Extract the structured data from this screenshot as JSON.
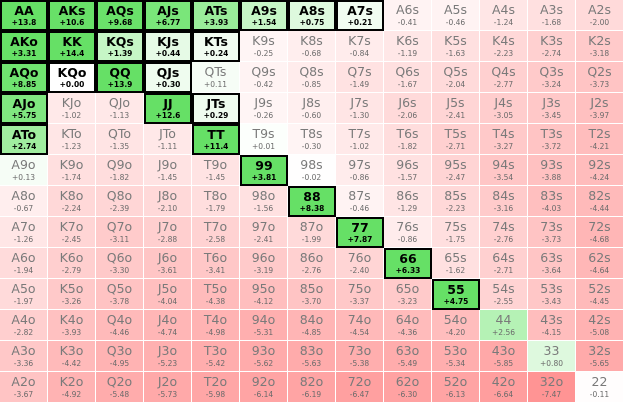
{
  "grid": {
    "rows": [
      [
        {
          "hand": "AA",
          "ev": "+13.8",
          "color": "#66e066",
          "bold": true,
          "box": true
        },
        {
          "hand": "AKs",
          "ev": "+10.6",
          "color": "#68e068",
          "bold": true,
          "box": true
        },
        {
          "hand": "AQs",
          "ev": "+9.68",
          "color": "#6ae16a",
          "bold": true,
          "box": true
        },
        {
          "hand": "AJs",
          "ev": "+6.77",
          "color": "#7ae67a",
          "bold": true,
          "box": true
        },
        {
          "hand": "ATs",
          "ev": "+3.93",
          "color": "#9aed9a",
          "bold": true,
          "box": true
        },
        {
          "hand": "A9s",
          "ev": "+1.54",
          "color": "#c6f6c6",
          "bold": true,
          "box": true
        },
        {
          "hand": "A8s",
          "ev": "+0.75",
          "color": "#def9de",
          "bold": true,
          "box": true
        },
        {
          "hand": "A7s",
          "ev": "+0.21",
          "color": "#f1fcf1",
          "bold": true,
          "box": true
        },
        {
          "hand": "A6s",
          "ev": "-0.41",
          "color": "#fff3f3"
        },
        {
          "hand": "A5s",
          "ev": "-0.46",
          "color": "#fff3f3"
        },
        {
          "hand": "A4s",
          "ev": "-1.24",
          "color": "#ffe6e6"
        },
        {
          "hand": "A3s",
          "ev": "-1.68",
          "color": "#ffe0e0"
        },
        {
          "hand": "A2s",
          "ev": "-2.00",
          "color": "#ffdada"
        }
      ],
      [
        {
          "hand": "AKo",
          "ev": "+3.31",
          "color": "#66e066",
          "bold": true,
          "box": true
        },
        {
          "hand": "KK",
          "ev": "+14.4",
          "color": "#66e066",
          "bold": true,
          "box": true
        },
        {
          "hand": "KQs",
          "ev": "+1.39",
          "color": "#c6f6c6",
          "bold": true,
          "box": true
        },
        {
          "hand": "KJs",
          "ev": "+0.44",
          "color": "#e6fae6",
          "bold": true,
          "box": true
        },
        {
          "hand": "KTs",
          "ev": "+0.24",
          "color": "#f1fcf1",
          "bold": true,
          "box": true
        },
        {
          "hand": "K9s",
          "ev": "-0.25",
          "color": "#fff5f5"
        },
        {
          "hand": "K8s",
          "ev": "-0.68",
          "color": "#ffeeee"
        },
        {
          "hand": "K7s",
          "ev": "-0.84",
          "color": "#ffecec"
        },
        {
          "hand": "K6s",
          "ev": "-1.19",
          "color": "#ffe7e7"
        },
        {
          "hand": "K5s",
          "ev": "-1.63",
          "color": "#ffe0e0"
        },
        {
          "hand": "K4s",
          "ev": "-2.23",
          "color": "#ffd8d8"
        },
        {
          "hand": "K3s",
          "ev": "-2.74",
          "color": "#ffd0d0"
        },
        {
          "hand": "K2s",
          "ev": "-3.18",
          "color": "#ffcaca"
        }
      ],
      [
        {
          "hand": "AQo",
          "ev": "+8.85",
          "color": "#70e370",
          "bold": true,
          "box": true
        },
        {
          "hand": "KQo",
          "ev": "+0.00",
          "color": "#ffffff",
          "bold": true,
          "box": true
        },
        {
          "hand": "QQ",
          "ev": "+13.9",
          "color": "#66e066",
          "bold": true,
          "box": true
        },
        {
          "hand": "QJs",
          "ev": "+0.30",
          "color": "#effcef",
          "bold": true,
          "box": true
        },
        {
          "hand": "QTs",
          "ev": "+0.11",
          "color": "#f6fdf6"
        },
        {
          "hand": "Q9s",
          "ev": "-0.42",
          "color": "#fff3f3"
        },
        {
          "hand": "Q8s",
          "ev": "-0.85",
          "color": "#ffecec"
        },
        {
          "hand": "Q7s",
          "ev": "-1.49",
          "color": "#ffe2e2"
        },
        {
          "hand": "Q6s",
          "ev": "-1.67",
          "color": "#ffe0e0"
        },
        {
          "hand": "Q5s",
          "ev": "-2.04",
          "color": "#ffdada"
        },
        {
          "hand": "Q4s",
          "ev": "-2.77",
          "color": "#ffd0d0"
        },
        {
          "hand": "Q3s",
          "ev": "-3.24",
          "color": "#ffcaca"
        },
        {
          "hand": "Q2s",
          "ev": "-3.73",
          "color": "#ffc4c4"
        }
      ],
      [
        {
          "hand": "AJo",
          "ev": "+5.75",
          "color": "#80e780",
          "bold": true,
          "box": true
        },
        {
          "hand": "KJo",
          "ev": "-1.02",
          "color": "#ffe9e9"
        },
        {
          "hand": "QJo",
          "ev": "-1.13",
          "color": "#ffe8e8"
        },
        {
          "hand": "JJ",
          "ev": "+12.6",
          "color": "#66e066",
          "bold": true,
          "box": true
        },
        {
          "hand": "JTs",
          "ev": "+0.29",
          "color": "#effcef",
          "bold": true,
          "box": true
        },
        {
          "hand": "J9s",
          "ev": "-0.26",
          "color": "#fff5f5"
        },
        {
          "hand": "J8s",
          "ev": "-0.60",
          "color": "#ffefef"
        },
        {
          "hand": "J7s",
          "ev": "-1.30",
          "color": "#ffe5e5"
        },
        {
          "hand": "J6s",
          "ev": "-2.06",
          "color": "#ffdada"
        },
        {
          "hand": "J5s",
          "ev": "-2.41",
          "color": "#ffd5d5"
        },
        {
          "hand": "J4s",
          "ev": "-3.05",
          "color": "#ffcdcd"
        },
        {
          "hand": "J3s",
          "ev": "-3.45",
          "color": "#ffc8c8"
        },
        {
          "hand": "J2s",
          "ev": "-3.97",
          "color": "#ffc0c0"
        }
      ],
      [
        {
          "hand": "ATo",
          "ev": "+2.74",
          "color": "#a0ee9f",
          "bold": true,
          "box": true
        },
        {
          "hand": "KTo",
          "ev": "-1.23",
          "color": "#ffe6e6"
        },
        {
          "hand": "QTo",
          "ev": "-1.35",
          "color": "#ffe4e4"
        },
        {
          "hand": "JTo",
          "ev": "-1.11",
          "color": "#ffe8e8"
        },
        {
          "hand": "TT",
          "ev": "+11.4",
          "color": "#66e066",
          "bold": true,
          "box": true
        },
        {
          "hand": "T9s",
          "ev": "+0.01",
          "color": "#fcfffc"
        },
        {
          "hand": "T8s",
          "ev": "-0.30",
          "color": "#fff4f4"
        },
        {
          "hand": "T7s",
          "ev": "-1.02",
          "color": "#ffe9e9"
        },
        {
          "hand": "T6s",
          "ev": "-1.82",
          "color": "#ffdddd"
        },
        {
          "hand": "T5s",
          "ev": "-2.71",
          "color": "#ffd0d0"
        },
        {
          "hand": "T4s",
          "ev": "-3.27",
          "color": "#ffc9c9"
        },
        {
          "hand": "T3s",
          "ev": "-3.72",
          "color": "#ffc4c4"
        },
        {
          "hand": "T2s",
          "ev": "-4.21",
          "color": "#ffbdbd"
        }
      ],
      [
        {
          "hand": "A9o",
          "ev": "+0.13",
          "color": "#f6fdf6"
        },
        {
          "hand": "K9o",
          "ev": "-1.74",
          "color": "#ffdfdf"
        },
        {
          "hand": "Q9o",
          "ev": "-1.82",
          "color": "#ffdddd"
        },
        {
          "hand": "J9o",
          "ev": "-1.45",
          "color": "#ffe3e3"
        },
        {
          "hand": "T9o",
          "ev": "-1.45",
          "color": "#ffe3e3"
        },
        {
          "hand": "99",
          "ev": "+3.81",
          "color": "#66e066",
          "bold": true,
          "box": true
        },
        {
          "hand": "98s",
          "ev": "-0.02",
          "color": "#fffefe"
        },
        {
          "hand": "97s",
          "ev": "-0.86",
          "color": "#ffecec"
        },
        {
          "hand": "96s",
          "ev": "-1.57",
          "color": "#ffe1e1"
        },
        {
          "hand": "95s",
          "ev": "-2.47",
          "color": "#ffd4d4"
        },
        {
          "hand": "94s",
          "ev": "-3.54",
          "color": "#ffc6c6"
        },
        {
          "hand": "93s",
          "ev": "-3.88",
          "color": "#ffc1c1"
        },
        {
          "hand": "92s",
          "ev": "-4.24",
          "color": "#ffbcbc"
        }
      ],
      [
        {
          "hand": "A8o",
          "ev": "-0.67",
          "color": "#ffeeee"
        },
        {
          "hand": "K8o",
          "ev": "-2.24",
          "color": "#ffd8d8"
        },
        {
          "hand": "Q8o",
          "ev": "-2.39",
          "color": "#ffd6d6"
        },
        {
          "hand": "J8o",
          "ev": "-2.10",
          "color": "#ffd9d9"
        },
        {
          "hand": "T8o",
          "ev": "-1.79",
          "color": "#ffdede"
        },
        {
          "hand": "98o",
          "ev": "-1.56",
          "color": "#ffe1e1"
        },
        {
          "hand": "88",
          "ev": "+8.38",
          "color": "#66e066",
          "bold": true,
          "box": true
        },
        {
          "hand": "87s",
          "ev": "-0.46",
          "color": "#fff3f3"
        },
        {
          "hand": "86s",
          "ev": "-1.29",
          "color": "#ffe5e5"
        },
        {
          "hand": "85s",
          "ev": "-2.23",
          "color": "#ffd8d8"
        },
        {
          "hand": "84s",
          "ev": "-3.16",
          "color": "#ffcbcb"
        },
        {
          "hand": "83s",
          "ev": "-4.03",
          "color": "#ffbfbf"
        },
        {
          "hand": "82s",
          "ev": "-4.44",
          "color": "#ffbaba"
        }
      ],
      [
        {
          "hand": "A7o",
          "ev": "-1.26",
          "color": "#ffe6e6"
        },
        {
          "hand": "K7o",
          "ev": "-2.45",
          "color": "#ffd5d5"
        },
        {
          "hand": "Q7o",
          "ev": "-3.11",
          "color": "#ffcbcb"
        },
        {
          "hand": "J7o",
          "ev": "-2.88",
          "color": "#ffcfcf"
        },
        {
          "hand": "T7o",
          "ev": "-2.58",
          "color": "#ffd2d2"
        },
        {
          "hand": "97o",
          "ev": "-2.41",
          "color": "#ffd5d5"
        },
        {
          "hand": "87o",
          "ev": "-1.99",
          "color": "#ffdada"
        },
        {
          "hand": "77",
          "ev": "+7.87",
          "color": "#66e066",
          "bold": true,
          "box": true
        },
        {
          "hand": "76s",
          "ev": "-0.86",
          "color": "#ffecec"
        },
        {
          "hand": "75s",
          "ev": "-1.75",
          "color": "#ffdfdf"
        },
        {
          "hand": "74s",
          "ev": "-2.76",
          "color": "#ffd0d0"
        },
        {
          "hand": "73s",
          "ev": "-3.73",
          "color": "#ffc4c4"
        },
        {
          "hand": "72s",
          "ev": "-4.68",
          "color": "#ffb6b6"
        }
      ],
      [
        {
          "hand": "A6o",
          "ev": "-1.94",
          "color": "#ffdbdb"
        },
        {
          "hand": "K6o",
          "ev": "-2.79",
          "color": "#ffcfcf"
        },
        {
          "hand": "Q6o",
          "ev": "-3.30",
          "color": "#ffc9c9"
        },
        {
          "hand": "J6o",
          "ev": "-3.61",
          "color": "#ffc5c5"
        },
        {
          "hand": "T6o",
          "ev": "-3.41",
          "color": "#ffc7c7"
        },
        {
          "hand": "96o",
          "ev": "-3.19",
          "color": "#ffcaca"
        },
        {
          "hand": "86o",
          "ev": "-2.76",
          "color": "#ffd0d0"
        },
        {
          "hand": "76o",
          "ev": "-2.40",
          "color": "#ffd5d5"
        },
        {
          "hand": "66",
          "ev": "+6.33",
          "color": "#66e066",
          "bold": true,
          "box": true
        },
        {
          "hand": "65s",
          "ev": "-1.62",
          "color": "#ffe0e0"
        },
        {
          "hand": "64s",
          "ev": "-2.71",
          "color": "#ffd0d0"
        },
        {
          "hand": "63s",
          "ev": "-3.64",
          "color": "#ffc5c5"
        },
        {
          "hand": "62s",
          "ev": "-4.64",
          "color": "#ffb7b7"
        }
      ],
      [
        {
          "hand": "A5o",
          "ev": "-1.97",
          "color": "#ffdada"
        },
        {
          "hand": "K5o",
          "ev": "-3.26",
          "color": "#ffc9c9"
        },
        {
          "hand": "Q5o",
          "ev": "-3.78",
          "color": "#ffc3c3"
        },
        {
          "hand": "J5o",
          "ev": "-4.04",
          "color": "#ffbfbf"
        },
        {
          "hand": "T5o",
          "ev": "-4.38",
          "color": "#ffbbbb"
        },
        {
          "hand": "95o",
          "ev": "-4.12",
          "color": "#ffbebe"
        },
        {
          "hand": "85o",
          "ev": "-3.70",
          "color": "#ffc4c4"
        },
        {
          "hand": "75o",
          "ev": "-3.37",
          "color": "#ffc8c8"
        },
        {
          "hand": "65o",
          "ev": "-3.23",
          "color": "#ffcaca"
        },
        {
          "hand": "55",
          "ev": "+4.75",
          "color": "#66e066",
          "bold": true,
          "box": true
        },
        {
          "hand": "54s",
          "ev": "-2.55",
          "color": "#ffd3d3"
        },
        {
          "hand": "53s",
          "ev": "-3.43",
          "color": "#ffc7c7"
        },
        {
          "hand": "52s",
          "ev": "-4.45",
          "color": "#ffbaba"
        }
      ],
      [
        {
          "hand": "A4o",
          "ev": "-2.82",
          "color": "#ffcfcf"
        },
        {
          "hand": "K4o",
          "ev": "-3.93",
          "color": "#ffc1c1"
        },
        {
          "hand": "Q4o",
          "ev": "-4.46",
          "color": "#ffbaba"
        },
        {
          "hand": "J4o",
          "ev": "-4.74",
          "color": "#ffb6b6"
        },
        {
          "hand": "T4o",
          "ev": "-4.98",
          "color": "#ffb3b3"
        },
        {
          "hand": "94o",
          "ev": "-5.31",
          "color": "#ffafaf"
        },
        {
          "hand": "84o",
          "ev": "-4.85",
          "color": "#ffb5b5"
        },
        {
          "hand": "74o",
          "ev": "-4.54",
          "color": "#ffb9b9"
        },
        {
          "hand": "64o",
          "ev": "-4.36",
          "color": "#ffbbbb"
        },
        {
          "hand": "54o",
          "ev": "-4.20",
          "color": "#ffbdbd"
        },
        {
          "hand": "44",
          "ev": "+2.56",
          "color": "#b5f2b5"
        },
        {
          "hand": "43s",
          "ev": "-4.15",
          "color": "#ffbdbd"
        },
        {
          "hand": "42s",
          "ev": "-5.08",
          "color": "#ffb2b2"
        }
      ],
      [
        {
          "hand": "A3o",
          "ev": "-3.36",
          "color": "#ffc8c8"
        },
        {
          "hand": "K3o",
          "ev": "-4.42",
          "color": "#ffbaba"
        },
        {
          "hand": "Q3o",
          "ev": "-4.95",
          "color": "#ffb3b3"
        },
        {
          "hand": "J3o",
          "ev": "-5.23",
          "color": "#ffb0b0"
        },
        {
          "hand": "T3o",
          "ev": "-5.42",
          "color": "#ffadad"
        },
        {
          "hand": "93o",
          "ev": "-5.62",
          "color": "#ffabab"
        },
        {
          "hand": "83o",
          "ev": "-5.63",
          "color": "#ffabab"
        },
        {
          "hand": "73o",
          "ev": "-5.38",
          "color": "#ffaeae"
        },
        {
          "hand": "63o",
          "ev": "-5.49",
          "color": "#ffacac"
        },
        {
          "hand": "53o",
          "ev": "-5.34",
          "color": "#ffaeae"
        },
        {
          "hand": "43o",
          "ev": "-5.85",
          "color": "#ffa8a8"
        },
        {
          "hand": "33",
          "ev": "+0.80",
          "color": "#def9de"
        },
        {
          "hand": "32s",
          "ev": "-5.65",
          "color": "#ffaaaa"
        }
      ],
      [
        {
          "hand": "A2o",
          "ev": "-3.67",
          "color": "#ffc4c4"
        },
        {
          "hand": "K2o",
          "ev": "-4.92",
          "color": "#ffb3b3"
        },
        {
          "hand": "Q2o",
          "ev": "-5.48",
          "color": "#ffacac"
        },
        {
          "hand": "J2o",
          "ev": "-5.73",
          "color": "#ffa9a9"
        },
        {
          "hand": "T2o",
          "ev": "-5.98",
          "color": "#ffa6a6"
        },
        {
          "hand": "92o",
          "ev": "-6.14",
          "color": "#ffa4a4"
        },
        {
          "hand": "82o",
          "ev": "-6.19",
          "color": "#ffa4a4"
        },
        {
          "hand": "72o",
          "ev": "-6.47",
          "color": "#ffa0a0"
        },
        {
          "hand": "62o",
          "ev": "-6.30",
          "color": "#ffa2a2"
        },
        {
          "hand": "52o",
          "ev": "-6.13",
          "color": "#ffa4a4"
        },
        {
          "hand": "42o",
          "ev": "-6.64",
          "color": "#ff9e9e"
        },
        {
          "hand": "32o",
          "ev": "-7.47",
          "color": "#ff9494"
        },
        {
          "hand": "22",
          "ev": "-0.11",
          "color": "#fffdfd"
        }
      ]
    ]
  }
}
